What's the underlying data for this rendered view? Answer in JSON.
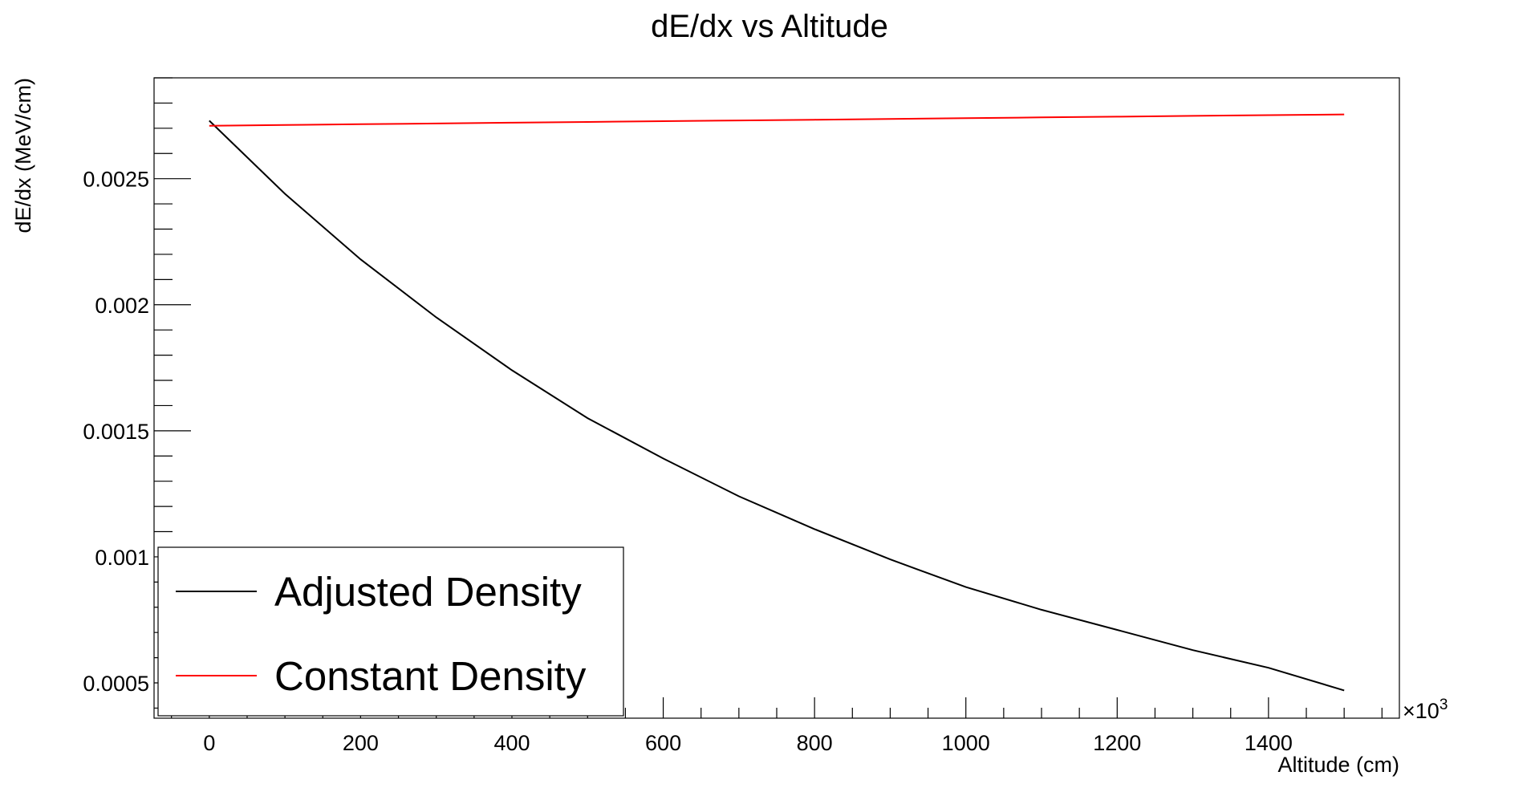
{
  "chart_data": {
    "type": "line",
    "title": "dE/dx vs Altitude",
    "xlabel": "Altitude (cm)",
    "ylabel": "dE/dx (MeV/cm)",
    "x_multiplier": "×10",
    "x_multiplier_exp": "3",
    "xlim": [
      -73,
      1573
    ],
    "ylim": [
      0.00036,
      0.0029
    ],
    "x_ticks": [
      0,
      200,
      400,
      600,
      800,
      1000,
      1200,
      1400
    ],
    "x_tick_labels": [
      "0",
      "200",
      "400",
      "600",
      "800",
      "1000",
      "1200",
      "1400"
    ],
    "y_ticks": [
      0.0005,
      0.001,
      0.0015,
      0.002,
      0.0025
    ],
    "y_tick_labels": [
      "0.0005",
      "0.001",
      "0.0015",
      "0.002",
      "0.0025"
    ],
    "grid": false,
    "legend_position": "bottom-left",
    "series": [
      {
        "name": "Adjusted Density",
        "color": "#000000",
        "x": [
          0,
          100,
          200,
          300,
          400,
          500,
          600,
          700,
          800,
          900,
          1000,
          1100,
          1200,
          1300,
          1400,
          1500
        ],
        "y": [
          0.00273,
          0.00244,
          0.00218,
          0.00195,
          0.00174,
          0.00155,
          0.00139,
          0.00124,
          0.00111,
          0.00099,
          0.00088,
          0.00079,
          0.00071,
          0.00063,
          0.00056,
          0.00047
        ]
      },
      {
        "name": "Constant Density",
        "color": "#ff0000",
        "x": [
          0,
          100,
          200,
          300,
          400,
          500,
          600,
          700,
          800,
          900,
          1000,
          1100,
          1200,
          1300,
          1400,
          1500
        ],
        "y": [
          0.00271,
          0.002713,
          0.002716,
          0.002719,
          0.002722,
          0.002725,
          0.002728,
          0.002731,
          0.002734,
          0.002737,
          0.00274,
          0.002743,
          0.002746,
          0.002749,
          0.002752,
          0.002755
        ]
      }
    ]
  }
}
